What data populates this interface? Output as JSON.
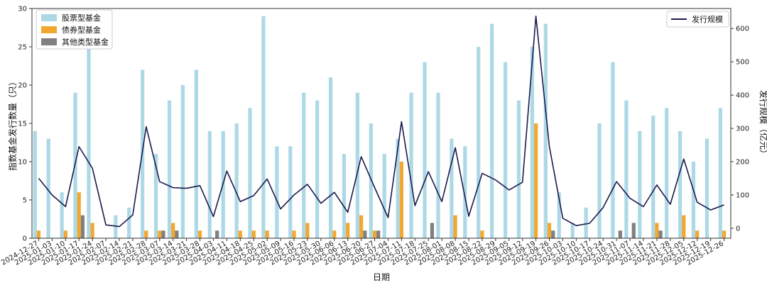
{
  "chart_data": {
    "type": "bar",
    "title": "",
    "xlabel": "日期",
    "ylabel": "指数基金发行数量（只）",
    "ylabel_right": "发行规模（亿元）",
    "ylim": [
      0,
      30
    ],
    "ylim_right": [
      -30,
      660
    ],
    "yticks": [
      0,
      5,
      10,
      15,
      20,
      25,
      30
    ],
    "yticks_right": [
      0,
      100,
      200,
      300,
      400,
      500,
      600
    ],
    "grid": false,
    "legend_left_position": "top-left",
    "legend_right_position": "top-right",
    "categories": [
      "2024-12-27",
      "2025-01-03",
      "2025-01-10",
      "2025-01-17",
      "2025-01-24",
      "2025-02-07",
      "2025-02-14",
      "2025-02-21",
      "2025-02-28",
      "2025-03-07",
      "2025-03-14",
      "2025-03-21",
      "2025-03-28",
      "2025-04-03",
      "2025-04-11",
      "2025-04-18",
      "2025-04-25",
      "2025-05-02",
      "2025-05-09",
      "2025-05-16",
      "2025-05-23",
      "2025-05-30",
      "2025-06-06",
      "2025-06-13",
      "2025-06-20",
      "2025-06-27",
      "2025-07-04",
      "2025-07-11",
      "2025-07-18",
      "2025-07-25",
      "2025-08-01",
      "2025-08-08",
      "2025-08-15",
      "2025-08-22",
      "2025-08-29",
      "2025-09-05",
      "2025-09-12",
      "2025-09-19",
      "2025-09-26",
      "2025-10-03",
      "2025-10-10",
      "2025-10-17",
      "2025-10-24",
      "2025-10-31",
      "2025-11-07",
      "2025-11-14",
      "2025-11-21",
      "2025-11-28",
      "2025-12-05",
      "2025-12-12",
      "2025-12-19",
      "2025-12-26"
    ],
    "series": [
      {
        "name": "股票型基金",
        "axis": "left",
        "kind": "bar",
        "color": "#add8e6",
        "values": [
          14,
          13,
          6,
          19,
          29,
          0,
          3,
          4,
          22,
          11,
          18,
          20,
          22,
          14,
          14,
          15,
          17,
          29,
          12,
          12,
          19,
          18,
          21,
          11,
          19,
          15,
          11,
          13,
          19,
          23,
          19,
          13,
          12,
          25,
          28,
          23,
          18,
          25,
          28,
          6,
          2,
          4,
          15,
          23,
          18,
          14,
          16,
          17,
          14,
          10,
          13,
          17
        ]
      },
      {
        "name": "债券型基金",
        "axis": "left",
        "kind": "bar",
        "color": "#f0a830",
        "values": [
          1,
          0,
          1,
          6,
          2,
          0,
          0,
          0,
          1,
          1,
          2,
          0,
          1,
          0,
          0,
          1,
          1,
          1,
          0,
          1,
          2,
          0,
          1,
          2,
          3,
          1,
          0,
          10,
          0,
          0,
          0,
          3,
          0,
          1,
          0,
          0,
          0,
          15,
          2,
          0,
          0,
          0,
          0,
          0,
          0,
          0,
          2,
          0,
          3,
          1,
          0,
          1
        ]
      },
      {
        "name": "其他类型基金",
        "axis": "left",
        "kind": "bar",
        "color": "#808080",
        "values": [
          0,
          0,
          0,
          3,
          0,
          0,
          0,
          0,
          0,
          1,
          1,
          0,
          0,
          1,
          0,
          0,
          0,
          0,
          0,
          0,
          0,
          0,
          0,
          0,
          1,
          1,
          0,
          0,
          0,
          2,
          0,
          0,
          0,
          0,
          0,
          0,
          0,
          0,
          1,
          0,
          0,
          0,
          0,
          1,
          2,
          0,
          1,
          0,
          0,
          0,
          0,
          0
        ]
      },
      {
        "name": "发行规模",
        "axis": "right",
        "kind": "line",
        "color": "#1a1a4d",
        "values": [
          150,
          100,
          65,
          245,
          180,
          10,
          5,
          40,
          305,
          140,
          122,
          120,
          128,
          35,
          172,
          80,
          98,
          148,
          58,
          100,
          132,
          75,
          108,
          48,
          215,
          122,
          32,
          320,
          68,
          170,
          80,
          242,
          36,
          165,
          145,
          115,
          138,
          637,
          245,
          30,
          8,
          15,
          62,
          140,
          90,
          65,
          130,
          72,
          208,
          78,
          55,
          70
        ]
      }
    ]
  }
}
